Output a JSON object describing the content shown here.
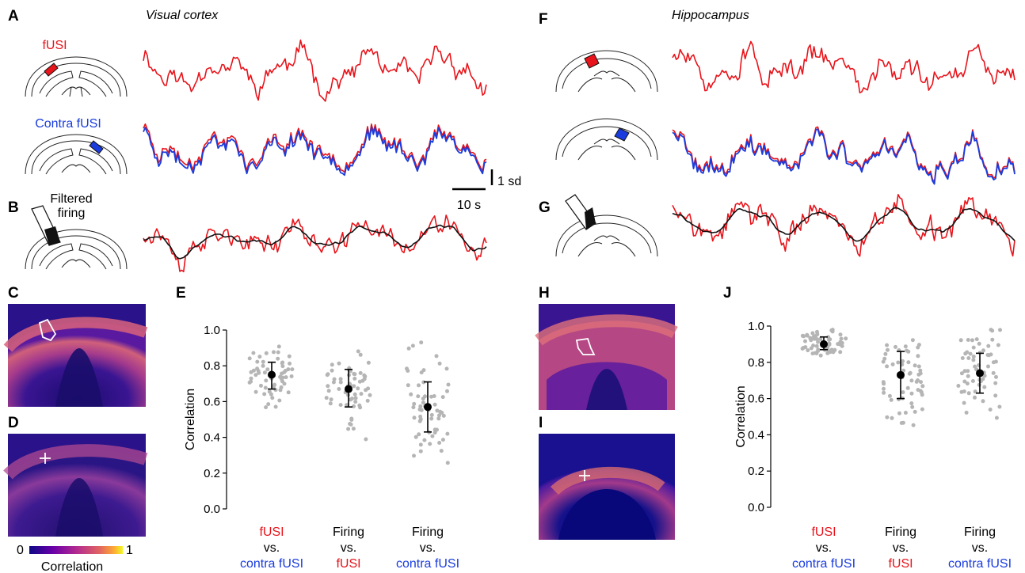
{
  "colors": {
    "fusi": "#e8141b",
    "contra": "#1a3cde",
    "firing": "#111111",
    "dots": "#b5b5b5",
    "cmap_low": "#0d0887",
    "cmap_high": "#f0f921"
  },
  "panel_labels": [
    "A",
    "B",
    "C",
    "D",
    "E",
    "F",
    "G",
    "H",
    "I",
    "J"
  ],
  "titles": {
    "left": "Visual cortex",
    "right": "Hippocampus"
  },
  "trace_labels": {
    "fusi": "fUSI",
    "contra": "Contra fUSI",
    "filtered": "Filtered",
    "firing": "firing"
  },
  "scalebar": {
    "amplitude": "1 sd",
    "time": "10 s"
  },
  "colorbar": {
    "min": "0",
    "max": "1",
    "label": "Correlation"
  },
  "chart_data": [
    {
      "type": "scatter",
      "panel": "E",
      "ylabel": "Correlation",
      "ylim": [
        0.0,
        1.0
      ],
      "yticks": [
        "0.0",
        "0.2",
        "0.4",
        "0.6",
        "0.8",
        "1.0"
      ],
      "groups": [
        {
          "label_lines": [
            {
              "text": "fUSI",
              "color": "fusi"
            },
            {
              "text": "vs.",
              "color": "black"
            },
            {
              "text": "contra fUSI",
              "color": "contra"
            }
          ],
          "median": 0.75,
          "q1": 0.67,
          "q3": 0.82
        },
        {
          "label_lines": [
            {
              "text": "Firing",
              "color": "black"
            },
            {
              "text": "vs.",
              "color": "black"
            },
            {
              "text": "fUSI",
              "color": "fusi"
            }
          ],
          "median": 0.67,
          "q1": 0.57,
          "q3": 0.78
        },
        {
          "label_lines": [
            {
              "text": "Firing",
              "color": "black"
            },
            {
              "text": "vs.",
              "color": "black"
            },
            {
              "text": "contra fUSI",
              "color": "contra"
            }
          ],
          "median": 0.57,
          "q1": 0.43,
          "q3": 0.71
        }
      ]
    },
    {
      "type": "scatter",
      "panel": "J",
      "ylabel": "Correlation",
      "ylim": [
        0.0,
        1.0
      ],
      "yticks": [
        "0.0",
        "0.2",
        "0.4",
        "0.6",
        "0.8",
        "1.0"
      ],
      "groups": [
        {
          "label_lines": [
            {
              "text": "fUSI",
              "color": "fusi"
            },
            {
              "text": "vs.",
              "color": "black"
            },
            {
              "text": "contra fUSI",
              "color": "contra"
            }
          ],
          "median": 0.9,
          "q1": 0.87,
          "q3": 0.94
        },
        {
          "label_lines": [
            {
              "text": "Firing",
              "color": "black"
            },
            {
              "text": "vs.",
              "color": "black"
            },
            {
              "text": "fUSI",
              "color": "fusi"
            }
          ],
          "median": 0.73,
          "q1": 0.6,
          "q3": 0.86
        },
        {
          "label_lines": [
            {
              "text": "Firing",
              "color": "black"
            },
            {
              "text": "vs.",
              "color": "black"
            },
            {
              "text": "contra fUSI",
              "color": "contra"
            }
          ],
          "median": 0.74,
          "q1": 0.63,
          "q3": 0.85
        }
      ]
    }
  ]
}
